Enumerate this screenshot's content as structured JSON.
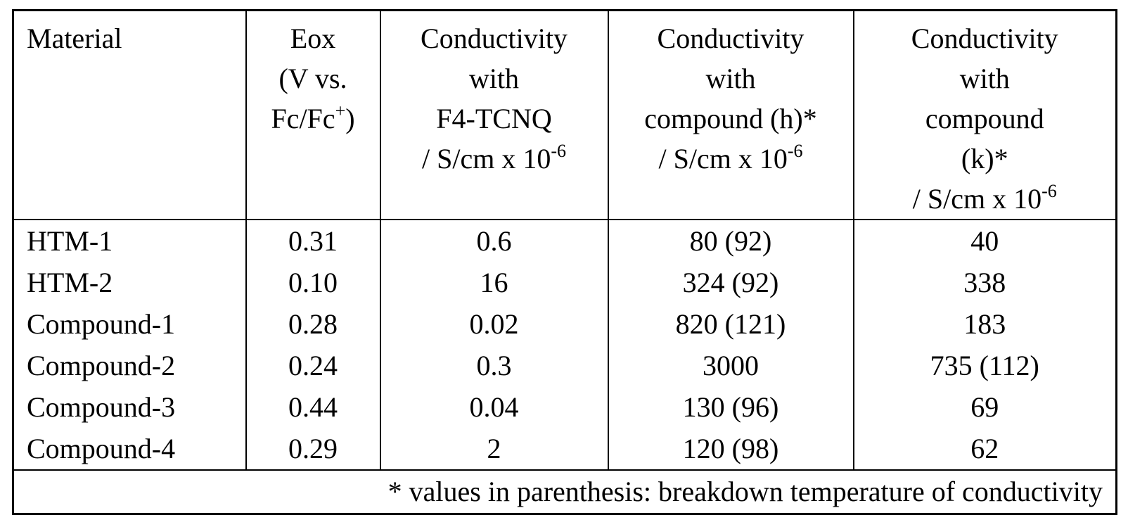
{
  "table": {
    "header": [
      {
        "lines": [
          "Material"
        ]
      },
      {
        "lines": [
          "Eox",
          "(V vs.",
          {
            "base": "Fc/Fc",
            "sup": "+",
            "tail": ")"
          }
        ]
      },
      {
        "lines": [
          "Conductivity",
          "with",
          "F4-TCNQ",
          {
            "base": "/ S/cm x 10",
            "sup": "-6"
          }
        ]
      },
      {
        "lines": [
          "Conductivity",
          "with",
          "compound (h)*",
          {
            "base": "/ S/cm x 10",
            "sup": "-6"
          }
        ]
      },
      {
        "lines": [
          "Conductivity",
          "with",
          "compound",
          "(k)*",
          {
            "base": "/ S/cm x 10",
            "sup": "-6"
          }
        ]
      }
    ],
    "rows": [
      [
        "HTM-1",
        "0.31",
        "0.6",
        "80 (92)",
        "40"
      ],
      [
        "HTM-2",
        "0.10",
        "16",
        "324 (92)",
        "338"
      ],
      [
        "Compound-1",
        "0.28",
        "0.02",
        "820 (121)",
        "183"
      ],
      [
        "Compound-2",
        "0.24",
        "0.3",
        "3000",
        "735 (112)"
      ],
      [
        "Compound-3",
        "0.44",
        "0.04",
        "130 (96)",
        "69"
      ],
      [
        "Compound-4",
        "0.29",
        "2",
        "120 (98)",
        "62"
      ]
    ],
    "footnote": "* values in parenthesis: breakdown temperature of conductivity"
  }
}
